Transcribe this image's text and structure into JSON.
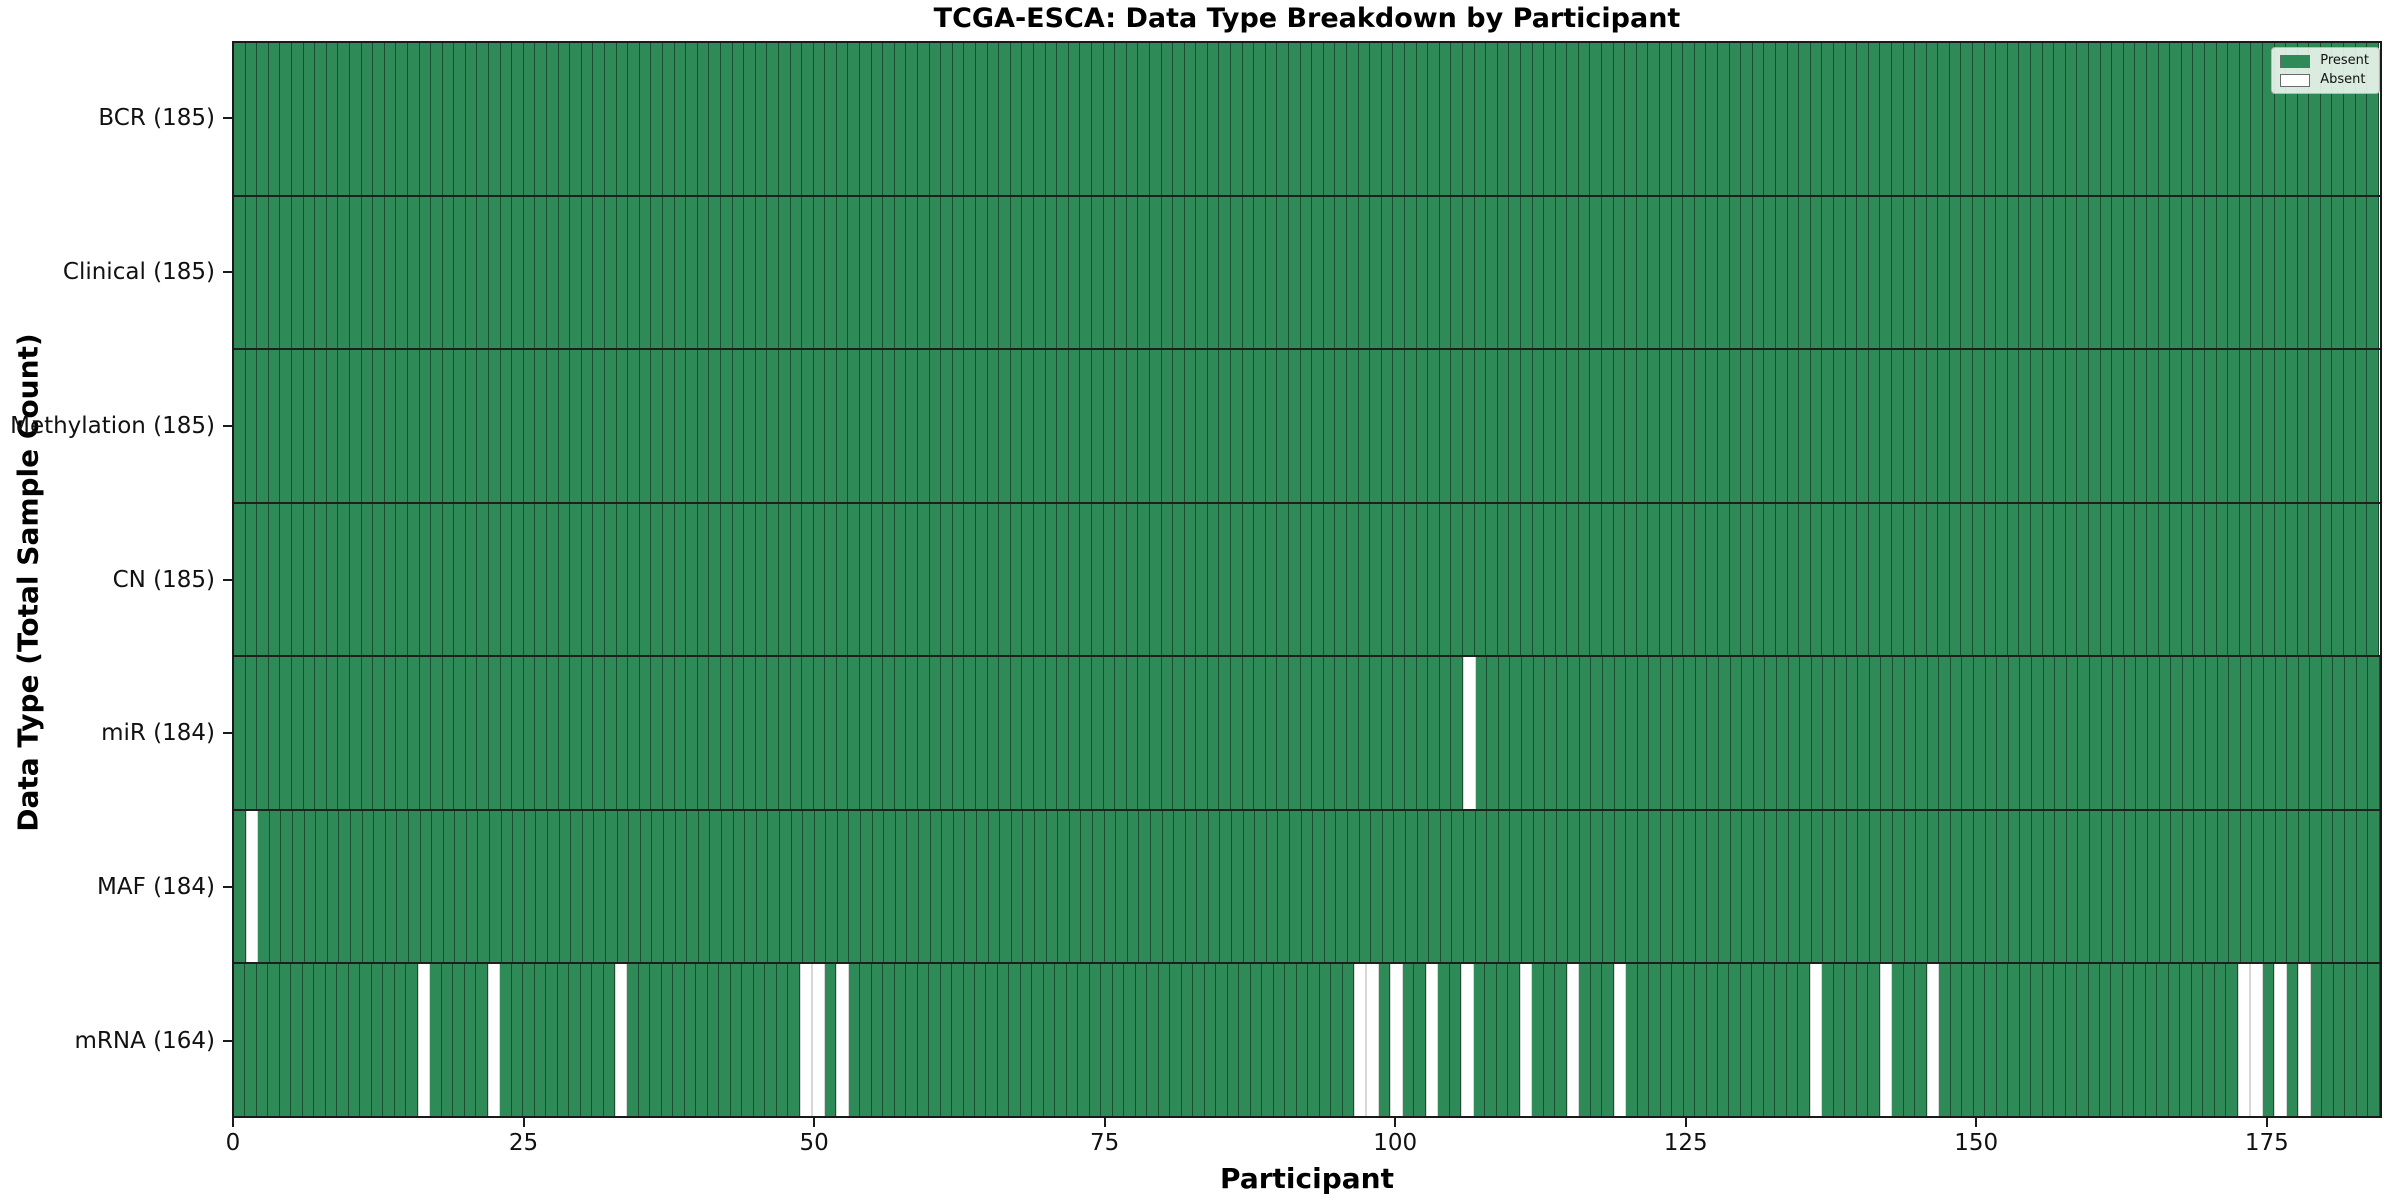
{
  "title": "TCGA-ESCA: Data Type Breakdown by Participant",
  "colors": {
    "present": "#2e8b57",
    "absent": "#ffffff",
    "present_border": "#1b4d31",
    "absent_border": "#d8d8d8",
    "spine": "#1a1a1a"
  },
  "legend": {
    "present_label": "Present",
    "absent_label": "Absent"
  },
  "chart_data": {
    "type": "heatmap",
    "title": "TCGA-ESCA: Data Type Breakdown by Participant",
    "xlabel": "Participant",
    "ylabel": "Data Type (Total Sample Count)",
    "n_participants": 185,
    "x_ticks": [
      0,
      25,
      50,
      75,
      100,
      125,
      150,
      175
    ],
    "x_range": [
      0,
      185
    ],
    "legend_position": "upper right",
    "legend_entries": [
      "Present",
      "Absent"
    ],
    "grid": "cell-borders",
    "rows": [
      {
        "data_type": "BCR",
        "label": "BCR (185)",
        "present_count": 185,
        "absent_participants": []
      },
      {
        "data_type": "Clinical",
        "label": "Clinical (185)",
        "present_count": 185,
        "absent_participants": []
      },
      {
        "data_type": "Methylation",
        "label": "Methylation (185)",
        "present_count": 185,
        "absent_participants": []
      },
      {
        "data_type": "CN",
        "label": "CN (185)",
        "present_count": 185,
        "absent_participants": []
      },
      {
        "data_type": "miR",
        "label": "miR (184)",
        "present_count": 184,
        "absent_participants": [
          106
        ]
      },
      {
        "data_type": "MAF",
        "label": "MAF (184)",
        "present_count": 184,
        "absent_participants": [
          1
        ]
      },
      {
        "data_type": "mRNA",
        "label": "mRNA (164)",
        "present_count": 164,
        "absent_participants": [
          16,
          22,
          33,
          49,
          50,
          52,
          97,
          98,
          100,
          103,
          106,
          111,
          115,
          119,
          136,
          142,
          146,
          173,
          174,
          176,
          178
        ]
      }
    ]
  }
}
